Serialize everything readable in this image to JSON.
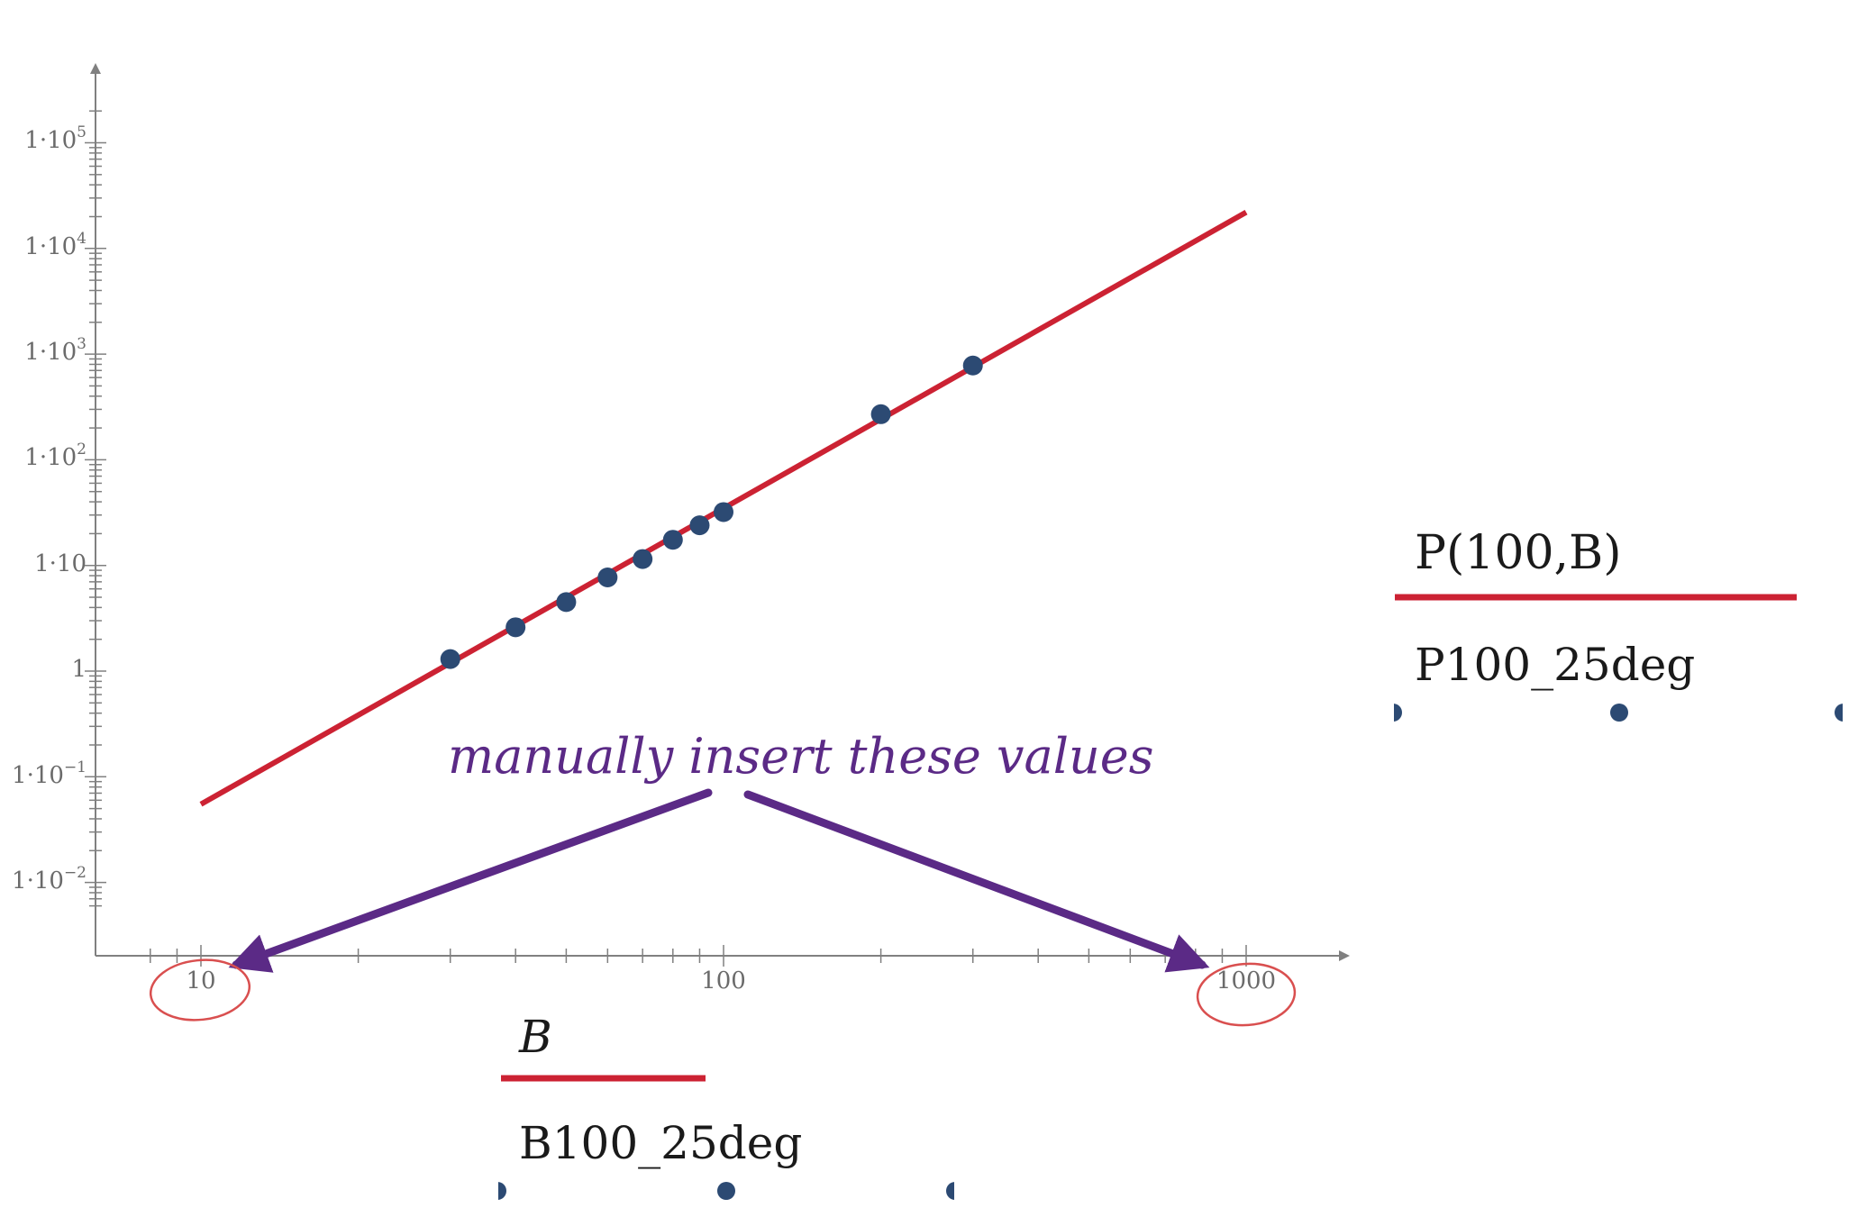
{
  "chart_data": {
    "type": "scatter",
    "x_scale": "log",
    "y_scale": "log",
    "xlim": [
      8,
      1150
    ],
    "ylim": [
      0.006,
      200000
    ],
    "x_ticks": [
      10,
      100,
      1000
    ],
    "x_tick_labels": [
      "10",
      "100",
      "1000"
    ],
    "y_ticks": [
      0.01,
      0.1,
      1,
      10,
      100,
      1000,
      10000,
      100000
    ],
    "y_tick_labels": [
      {
        "base": "1·10",
        "exp": "−2"
      },
      {
        "base": "1·10",
        "exp": "−1"
      },
      {
        "base": "1",
        "exp": ""
      },
      {
        "base": "1·10",
        "exp": ""
      },
      {
        "base": "1·10",
        "exp": "2"
      },
      {
        "base": "1·10",
        "exp": "3"
      },
      {
        "base": "1·10",
        "exp": "4"
      },
      {
        "base": "1·10",
        "exp": "5"
      }
    ],
    "xlabel": {
      "line1": "B",
      "line2": "B100_25deg"
    },
    "legend": {
      "line1": "P(100,B)",
      "line2": "P100_25deg"
    },
    "series": [
      {
        "kind": "line",
        "color": "#cc2233",
        "x": [
          10,
          1000
        ],
        "y": [
          0.055,
          22000
        ]
      },
      {
        "kind": "scatter",
        "color": "#2c4a73",
        "x": [
          30,
          40,
          50,
          60,
          70,
          80,
          90,
          100,
          200,
          300
        ],
        "y": [
          1.3,
          2.6,
          4.5,
          7.7,
          11.5,
          17.5,
          24,
          32,
          270,
          780
        ]
      }
    ],
    "annotations": [
      {
        "text": "manually insert these values",
        "color": "#5b2a86"
      }
    ],
    "highlight_color": "#d94f4f"
  }
}
